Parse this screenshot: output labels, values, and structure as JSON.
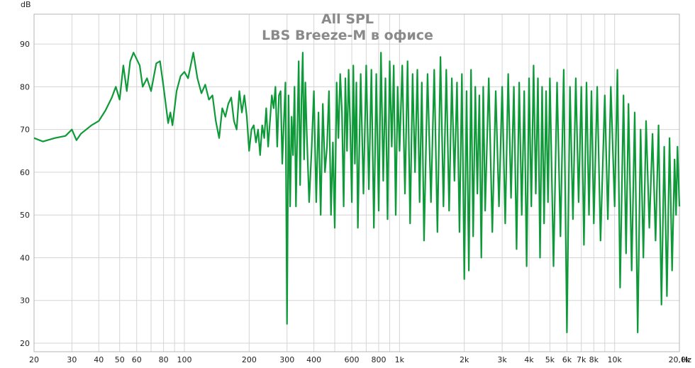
{
  "chart_data": {
    "type": "line",
    "title": "All SPL",
    "subtitle": "LBS Breeze-M в офисе",
    "ylabel": "dB",
    "xlabel": "Hz",
    "x_scale": "log",
    "xlim": [
      20,
      20000
    ],
    "ylim": [
      18,
      97
    ],
    "grid": true,
    "y_ticks": [
      20,
      30,
      40,
      50,
      60,
      70,
      80,
      90
    ],
    "x_ticks": [
      {
        "value": 20,
        "label": "20"
      },
      {
        "value": 30,
        "label": "30"
      },
      {
        "value": 40,
        "label": "40"
      },
      {
        "value": 50,
        "label": "50"
      },
      {
        "value": 60,
        "label": "60"
      },
      {
        "value": 80,
        "label": "80"
      },
      {
        "value": 100,
        "label": "100"
      },
      {
        "value": 200,
        "label": "200"
      },
      {
        "value": 300,
        "label": "300"
      },
      {
        "value": 400,
        "label": "400"
      },
      {
        "value": 600,
        "label": "600"
      },
      {
        "value": 800,
        "label": "800"
      },
      {
        "value": 1000,
        "label": "1k"
      },
      {
        "value": 2000,
        "label": "2k"
      },
      {
        "value": 3000,
        "label": "3k"
      },
      {
        "value": 4000,
        "label": "4k"
      },
      {
        "value": 5000,
        "label": "5k"
      },
      {
        "value": 6000,
        "label": "6k"
      },
      {
        "value": 7000,
        "label": "7k"
      },
      {
        "value": 8000,
        "label": "8k"
      },
      {
        "value": 10000,
        "label": "10k"
      },
      {
        "value": 20000,
        "label": "20,0k"
      }
    ],
    "minor_x_grid": [
      70,
      90,
      500,
      700,
      900,
      9000
    ],
    "series": [
      {
        "color": "#0f9a39",
        "points": [
          [
            20,
            68
          ],
          [
            22,
            67.2
          ],
          [
            25,
            68
          ],
          [
            28,
            68.5
          ],
          [
            30,
            70
          ],
          [
            31.5,
            67.5
          ],
          [
            33,
            69
          ],
          [
            37,
            71
          ],
          [
            40,
            72
          ],
          [
            43,
            74.5
          ],
          [
            46,
            77.5
          ],
          [
            48,
            80
          ],
          [
            50,
            77
          ],
          [
            52,
            85
          ],
          [
            54,
            79
          ],
          [
            56,
            86
          ],
          [
            58,
            88
          ],
          [
            62,
            85
          ],
          [
            64,
            80
          ],
          [
            67,
            82
          ],
          [
            70,
            79
          ],
          [
            74,
            85.5
          ],
          [
            77,
            86
          ],
          [
            80,
            80
          ],
          [
            84,
            71.5
          ],
          [
            86,
            74
          ],
          [
            88,
            71
          ],
          [
            92,
            79
          ],
          [
            96,
            82.5
          ],
          [
            100,
            83.5
          ],
          [
            104,
            82
          ],
          [
            110,
            88
          ],
          [
            115,
            82
          ],
          [
            120,
            78.5
          ],
          [
            125,
            80.5
          ],
          [
            130,
            77
          ],
          [
            135,
            78
          ],
          [
            140,
            72
          ],
          [
            145,
            68
          ],
          [
            150,
            75
          ],
          [
            155,
            73
          ],
          [
            160,
            76
          ],
          [
            165,
            77.5
          ],
          [
            170,
            72
          ],
          [
            175,
            70
          ],
          [
            180,
            79
          ],
          [
            185,
            74
          ],
          [
            190,
            78
          ],
          [
            195,
            73
          ],
          [
            200,
            65
          ],
          [
            205,
            70
          ],
          [
            210,
            71
          ],
          [
            215,
            67
          ],
          [
            220,
            70
          ],
          [
            225,
            64
          ],
          [
            230,
            71
          ],
          [
            235,
            68
          ],
          [
            240,
            75
          ],
          [
            245,
            66
          ],
          [
            250,
            72
          ],
          [
            255,
            78
          ],
          [
            260,
            75
          ],
          [
            265,
            80
          ],
          [
            270,
            66
          ],
          [
            275,
            78
          ],
          [
            280,
            79
          ],
          [
            285,
            62
          ],
          [
            290,
            72
          ],
          [
            295,
            81
          ],
          [
            300,
            24.5
          ],
          [
            305,
            78
          ],
          [
            310,
            52
          ],
          [
            315,
            73
          ],
          [
            320,
            64
          ],
          [
            325,
            80
          ],
          [
            330,
            52
          ],
          [
            335,
            70
          ],
          [
            340,
            86
          ],
          [
            345,
            57
          ],
          [
            350,
            77
          ],
          [
            355,
            88
          ],
          [
            360,
            63
          ],
          [
            365,
            81
          ],
          [
            370,
            70
          ],
          [
            380,
            53
          ],
          [
            390,
            65
          ],
          [
            400,
            79
          ],
          [
            410,
            53
          ],
          [
            420,
            74
          ],
          [
            430,
            50
          ],
          [
            440,
            76
          ],
          [
            450,
            60
          ],
          [
            460,
            66
          ],
          [
            470,
            79
          ],
          [
            480,
            50
          ],
          [
            490,
            67
          ],
          [
            500,
            47
          ],
          [
            510,
            81
          ],
          [
            520,
            68
          ],
          [
            530,
            83
          ],
          [
            540,
            74
          ],
          [
            550,
            52
          ],
          [
            560,
            82
          ],
          [
            570,
            65
          ],
          [
            580,
            84
          ],
          [
            590,
            71
          ],
          [
            600,
            53
          ],
          [
            610,
            85
          ],
          [
            620,
            62
          ],
          [
            630,
            81
          ],
          [
            640,
            47
          ],
          [
            660,
            83
          ],
          [
            680,
            55
          ],
          [
            700,
            85
          ],
          [
            720,
            56
          ],
          [
            740,
            84
          ],
          [
            760,
            47
          ],
          [
            780,
            83
          ],
          [
            800,
            51
          ],
          [
            820,
            88
          ],
          [
            840,
            58
          ],
          [
            860,
            82
          ],
          [
            880,
            49
          ],
          [
            900,
            86
          ],
          [
            920,
            66
          ],
          [
            940,
            85
          ],
          [
            960,
            50
          ],
          [
            980,
            80
          ],
          [
            1000,
            65
          ],
          [
            1030,
            85
          ],
          [
            1060,
            55
          ],
          [
            1090,
            86
          ],
          [
            1120,
            48
          ],
          [
            1150,
            83
          ],
          [
            1180,
            60
          ],
          [
            1210,
            84
          ],
          [
            1240,
            53
          ],
          [
            1270,
            81
          ],
          [
            1300,
            44
          ],
          [
            1350,
            83
          ],
          [
            1400,
            53
          ],
          [
            1450,
            84
          ],
          [
            1500,
            46
          ],
          [
            1550,
            87
          ],
          [
            1600,
            52
          ],
          [
            1650,
            84
          ],
          [
            1700,
            51
          ],
          [
            1750,
            82
          ],
          [
            1800,
            58
          ],
          [
            1850,
            81
          ],
          [
            1900,
            46
          ],
          [
            1950,
            83
          ],
          [
            2000,
            35
          ],
          [
            2050,
            79
          ],
          [
            2100,
            37
          ],
          [
            2150,
            84
          ],
          [
            2200,
            45
          ],
          [
            2250,
            80
          ],
          [
            2300,
            55
          ],
          [
            2350,
            78
          ],
          [
            2400,
            40
          ],
          [
            2450,
            80
          ],
          [
            2500,
            51
          ],
          [
            2600,
            82
          ],
          [
            2700,
            46
          ],
          [
            2800,
            79
          ],
          [
            2900,
            52
          ],
          [
            3000,
            80
          ],
          [
            3100,
            48
          ],
          [
            3200,
            83
          ],
          [
            3300,
            54
          ],
          [
            3400,
            80
          ],
          [
            3500,
            42
          ],
          [
            3600,
            81
          ],
          [
            3700,
            50
          ],
          [
            3800,
            79
          ],
          [
            3900,
            38
          ],
          [
            4000,
            82
          ],
          [
            4100,
            52
          ],
          [
            4200,
            85
          ],
          [
            4300,
            55
          ],
          [
            4400,
            82
          ],
          [
            4500,
            40
          ],
          [
            4600,
            80
          ],
          [
            4700,
            48
          ],
          [
            4800,
            79
          ],
          [
            4900,
            53
          ],
          [
            5000,
            82
          ],
          [
            5200,
            38
          ],
          [
            5400,
            81
          ],
          [
            5600,
            45
          ],
          [
            5800,
            84
          ],
          [
            6000,
            22.5
          ],
          [
            6200,
            80
          ],
          [
            6400,
            49
          ],
          [
            6600,
            82
          ],
          [
            6800,
            53
          ],
          [
            7000,
            80
          ],
          [
            7200,
            43
          ],
          [
            7400,
            81
          ],
          [
            7600,
            50
          ],
          [
            7800,
            79
          ],
          [
            8000,
            48
          ],
          [
            8300,
            80
          ],
          [
            8600,
            44
          ],
          [
            9000,
            78
          ],
          [
            9300,
            49
          ],
          [
            9600,
            80
          ],
          [
            10000,
            52
          ],
          [
            10300,
            84
          ],
          [
            10600,
            33
          ],
          [
            11000,
            78
          ],
          [
            11300,
            41
          ],
          [
            11600,
            76
          ],
          [
            12000,
            37
          ],
          [
            12400,
            74
          ],
          [
            12800,
            22.5
          ],
          [
            13200,
            70
          ],
          [
            13600,
            40
          ],
          [
            14000,
            72
          ],
          [
            14500,
            47
          ],
          [
            15000,
            69
          ],
          [
            15500,
            44
          ],
          [
            16000,
            71
          ],
          [
            16500,
            29
          ],
          [
            17000,
            66
          ],
          [
            17500,
            31
          ],
          [
            18000,
            68
          ],
          [
            18500,
            37
          ],
          [
            19000,
            63
          ],
          [
            19300,
            50
          ],
          [
            19600,
            66
          ],
          [
            20000,
            52
          ]
        ]
      }
    ]
  }
}
